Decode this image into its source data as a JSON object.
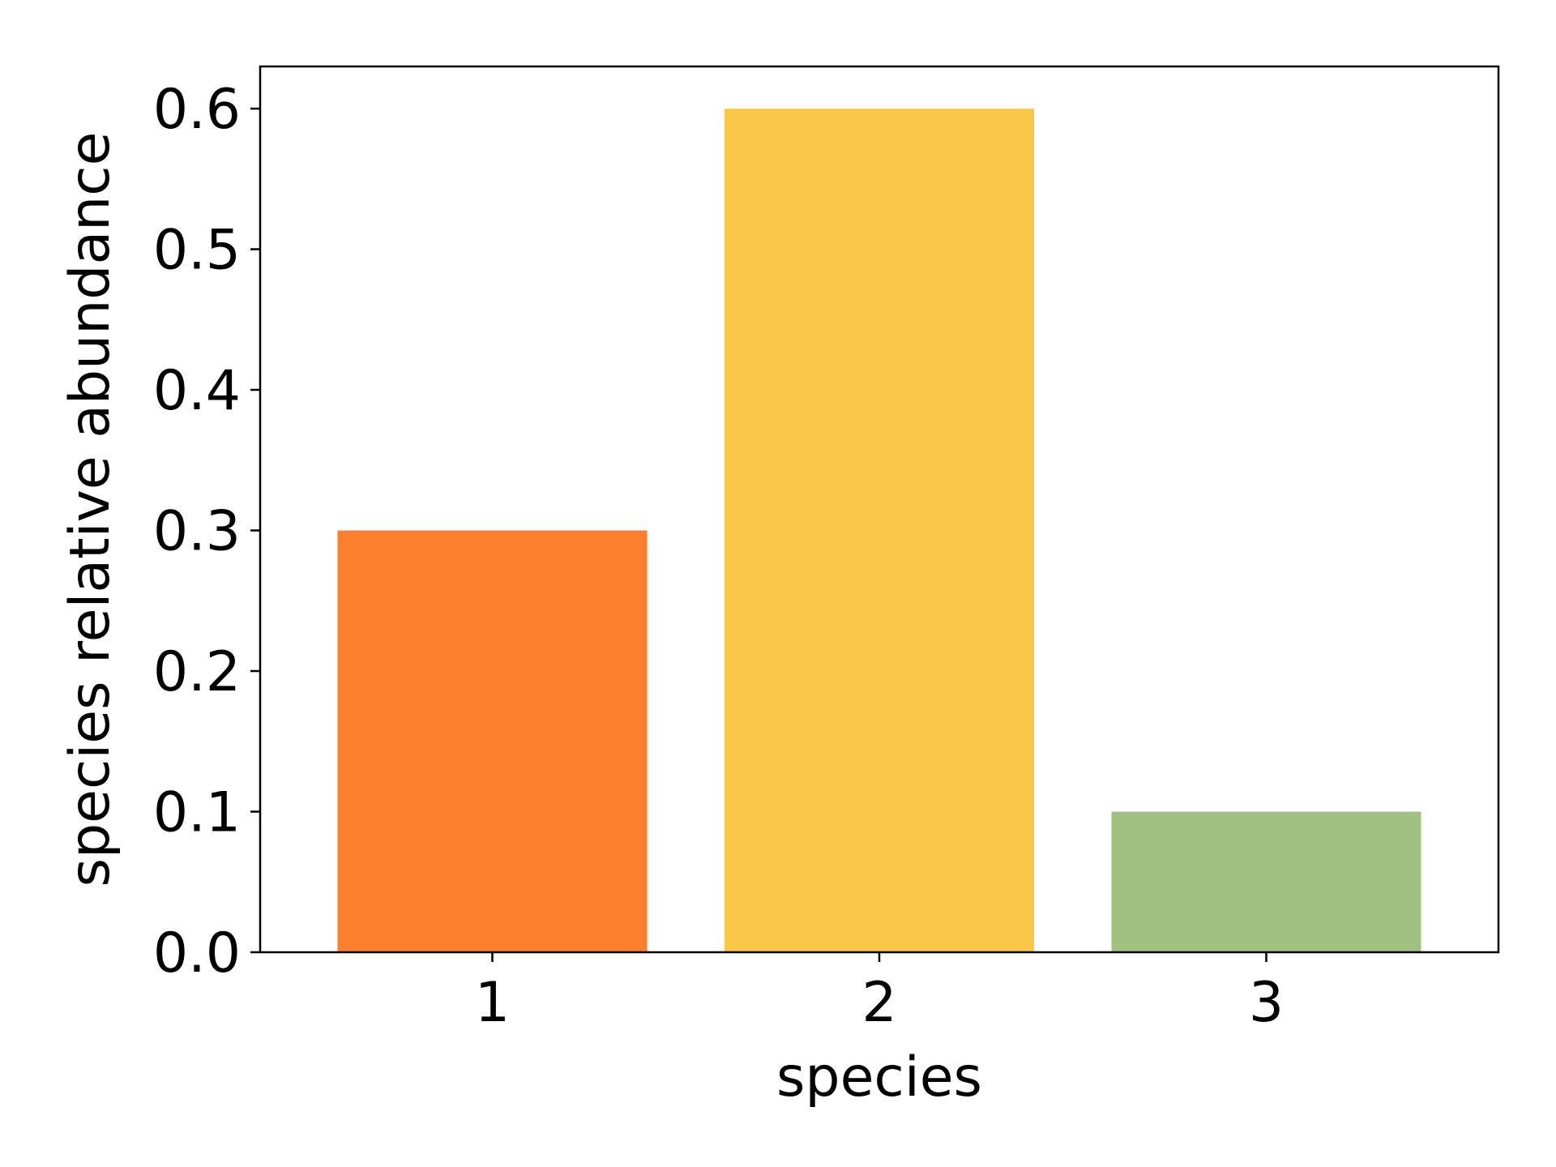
{
  "chart_data": {
    "type": "bar",
    "title": "",
    "xlabel": "species",
    "ylabel": "species relative abundance",
    "categories": [
      "1",
      "2",
      "3"
    ],
    "values": [
      0.3,
      0.6,
      0.1
    ],
    "colors": [
      "#fe7f2d",
      "#fac748",
      "#a1c181"
    ],
    "ylim": [
      0,
      0.63
    ],
    "yticks": [
      0.0,
      0.1,
      0.2,
      0.3,
      0.4,
      0.5,
      0.6
    ],
    "ytick_labels": [
      "0.0",
      "0.1",
      "0.2",
      "0.3",
      "0.4",
      "0.5",
      "0.6"
    ],
    "grid": false,
    "legend": "none"
  }
}
